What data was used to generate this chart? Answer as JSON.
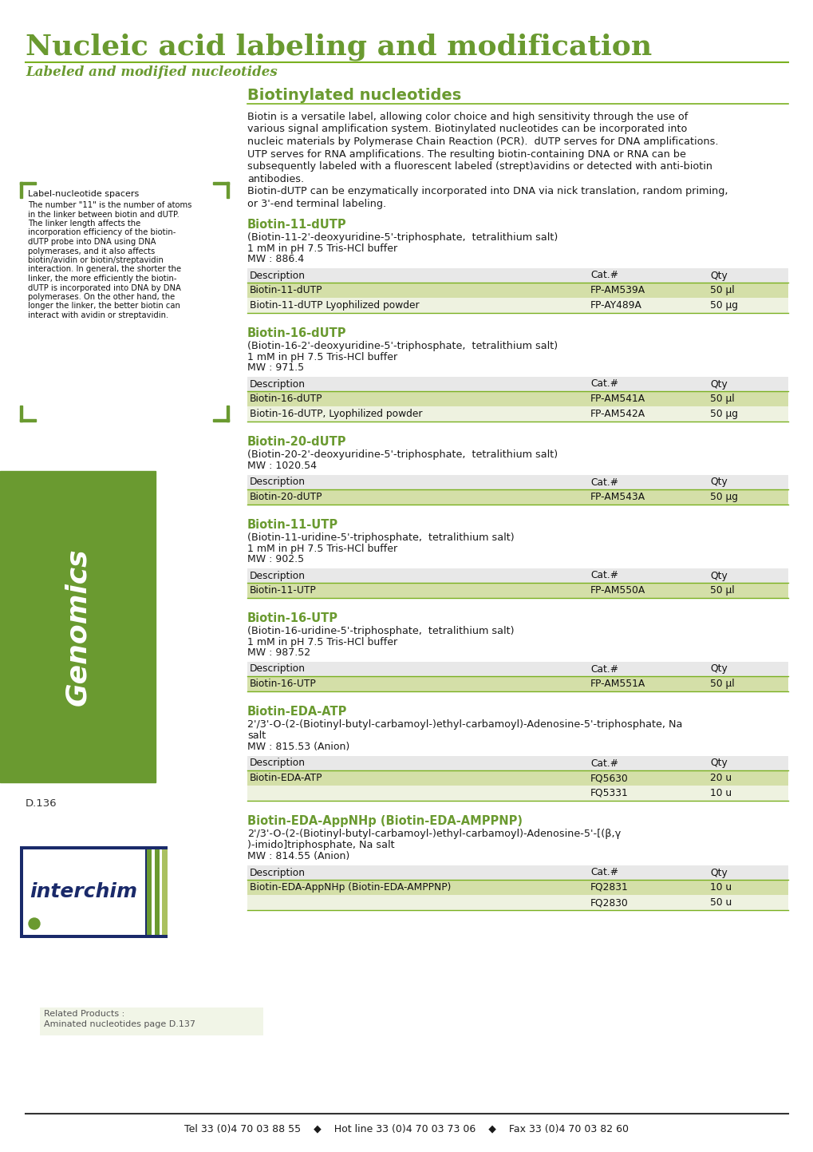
{
  "page_title": "Nucleic acid labeling and modification",
  "subtitle": "Labeled and modified nucleotides",
  "section_title": "Biotinylated nucleotides",
  "green_dark": "#6a9a30",
  "green_light": "#d4dfa8",
  "green_line": "#7ab020",
  "green_sidebar": "#6a9a30",
  "bg_color": "#ffffff",
  "sidebar_text_title": "Label-nucleotide spacers",
  "sidebar_text_body": "The number \"11\" is the number of atoms in the linker between biotin and dUTP. The linker length affects the incorporation efficiency of the biotin-dUTP probe into DNA using DNA polymerases, and it also affects biotin/avidin or biotin/streptavidin interaction. In general, the shorter the linker, the more efficiently the biotin-dUTP is incorporated into DNA by DNA polymerases. On the other hand, the longer the linker, the better biotin can interact with avidin or streptavidin.",
  "intro_text": "Biotin is a versatile label, allowing color choice and high sensitivity through the use of various signal amplification system. Biotinylated nucleotides can be incorporated into nucleic materials by Polymerase Chain Reaction (PCR).  dUTP serves for DNA amplifications. UTP serves for RNA amplifications. The resulting biotin-containing DNA or RNA can be subsequently labeled with a fluorescent labeled (strept)avidins or detected with anti-biotin antibodies.\nBiotin-dUTP can be enzymatically incorporated into DNA via nick translation, random priming, or 3'-end terminal labeling.",
  "page_id": "D.136",
  "related_label": "Related Products :",
  "related_body": "Aminated nucleotides page D.137",
  "footer_text": "Tel 33 (0)4 70 03 88 55    ◆    Hot line 33 (0)4 70 03 73 06    ◆    Fax 33 (0)4 70 03 82 60",
  "products": [
    {
      "name": "Biotin-11-dUTP",
      "full_name": "(Biotin-11-2'-deoxyuridine-5'-triphosphate,  tetralithium salt)",
      "buffer": "1 mM in pH 7.5 Tris-HCl buffer",
      "mw": "MW : 886.4",
      "rows": [
        [
          "Biotin-11-dUTP",
          "FP-AM539A",
          "50 µl"
        ],
        [
          "Biotin-11-dUTP Lyophilized powder",
          "FP-AY489A",
          "50 µg"
        ]
      ]
    },
    {
      "name": "Biotin-16-dUTP",
      "full_name": "(Biotin-16-2'-deoxyuridine-5'-triphosphate,  tetralithium salt)",
      "buffer": "1 mM in pH 7.5 Tris-HCl buffer",
      "mw": "MW : 971.5",
      "rows": [
        [
          "Biotin-16-dUTP",
          "FP-AM541A",
          "50 µl"
        ],
        [
          "Biotin-16-dUTP, Lyophilized powder",
          "FP-AM542A",
          "50 µg"
        ]
      ]
    },
    {
      "name": "Biotin-20-dUTP",
      "full_name": "(Biotin-20-2'-deoxyuridine-5'-triphosphate,  tetralithium salt)",
      "buffer": "",
      "mw": "MW : 1020.54",
      "rows": [
        [
          "Biotin-20-dUTP",
          "FP-AM543A",
          "50 µg"
        ]
      ]
    },
    {
      "name": "Biotin-11-UTP",
      "full_name": "(Biotin-11-uridine-5'-triphosphate,  tetralithium salt)",
      "buffer": "1 mM in pH 7.5 Tris-HCl buffer",
      "mw": "MW : 902.5",
      "rows": [
        [
          "Biotin-11-UTP",
          "FP-AM550A",
          "50 µl"
        ]
      ]
    },
    {
      "name": "Biotin-16-UTP",
      "full_name": "(Biotin-16-uridine-5'-triphosphate,  tetralithium salt)",
      "buffer": "1 mM in pH 7.5 Tris-HCl buffer",
      "mw": "MW : 987.52",
      "rows": [
        [
          "Biotin-16-UTP",
          "FP-AM551A",
          "50 µl"
        ]
      ]
    },
    {
      "name": "Biotin-EDA-ATP",
      "full_name": "2'/3'-O-(2-(Biotinyl-butyl-carbamoyl-)ethyl-carbamoyl)-Adenosine-5'-triphosphate, Na salt",
      "buffer": "MW : 815.53 (Anion)",
      "mw": "",
      "rows": [
        [
          "Biotin-EDA-ATP",
          "FQ5630",
          "20 u"
        ],
        [
          "",
          "FQ5331",
          "10 u"
        ]
      ]
    },
    {
      "name": "Biotin-EDA-AppNHp (Biotin-EDA-AMPPNP)",
      "full_name": "2'/3'-O-(2-(Biotinyl-butyl-carbamoyl-)ethyl-carbamoyl)-Adenosine-5'-[(β,γ )-imido]triphosphate, Na salt",
      "buffer": "MW : 814.55 (Anion)",
      "mw": "",
      "rows": [
        [
          "Biotin-EDA-AppNHp (Biotin-EDA-AMPPNP)",
          "FQ2831",
          "10 u"
        ],
        [
          "",
          "FQ2830",
          "50 u"
        ]
      ]
    }
  ]
}
